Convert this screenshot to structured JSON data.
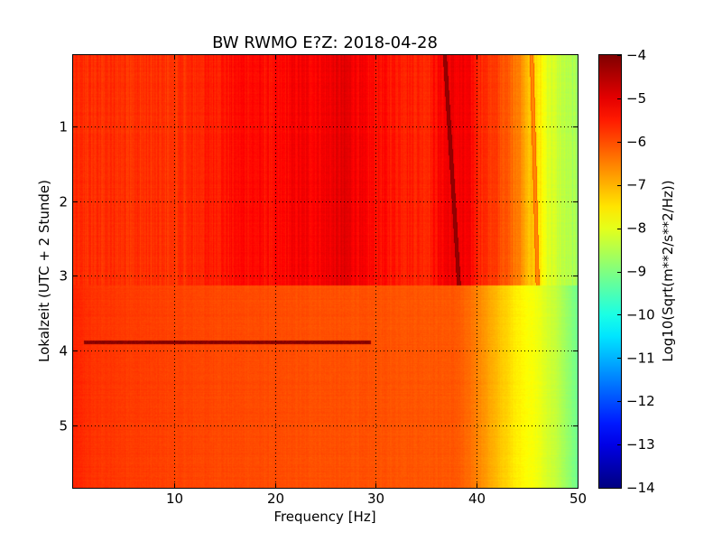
{
  "chart_data": {
    "type": "heatmap",
    "title": "BW RWMO E?Z: 2018-04-28",
    "xlabel": "Frequency [Hz]",
    "ylabel": "Lokalzeit (UTC + 2 Stunde)",
    "xlim": [
      0,
      50
    ],
    "ylim": [
      5.83,
      0.05
    ],
    "y_inverted": true,
    "xticks": [
      10,
      20,
      30,
      40,
      50
    ],
    "xtick_labels": [
      "10",
      "20",
      "30",
      "40",
      "50"
    ],
    "yticks": [
      1,
      2,
      3,
      4,
      5
    ],
    "ytick_labels": [
      "1",
      "2",
      "3",
      "4",
      "5"
    ],
    "grid": true,
    "colormap": "jet",
    "colorbar": {
      "label": "Log10(Sqrt(m**2/s**2/Hz))",
      "min": -14,
      "max": -4,
      "ticks": [
        -4,
        -5,
        -6,
        -7,
        -8,
        -9,
        -10,
        -11,
        -12,
        -13,
        -14
      ],
      "tick_labels": [
        "−4",
        "−5",
        "−6",
        "−7",
        "−8",
        "−9",
        "−10",
        "−11",
        "−12",
        "−13",
        "−14"
      ]
    },
    "regime_change_hour": 3.12,
    "upper_block": {
      "hours": [
        0.05,
        3.12
      ],
      "frequency_profile": [
        {
          "f": 0,
          "v": -5.7
        },
        {
          "f": 5,
          "v": -5.7
        },
        {
          "f": 10,
          "v": -5.75
        },
        {
          "f": 14,
          "v": -5.5
        },
        {
          "f": 17,
          "v": -5.3
        },
        {
          "f": 20,
          "v": -5.4
        },
        {
          "f": 22,
          "v": -5.2
        },
        {
          "f": 24,
          "v": -5.2
        },
        {
          "f": 27,
          "v": -5.0
        },
        {
          "f": 29,
          "v": -5.3
        },
        {
          "f": 31,
          "v": -5.4
        },
        {
          "f": 33,
          "v": -5.5
        },
        {
          "f": 35,
          "v": -5.6
        },
        {
          "f": 37,
          "v": -5.1
        },
        {
          "f": 39,
          "v": -5.2
        },
        {
          "f": 40,
          "v": -5.5
        },
        {
          "f": 42,
          "v": -5.9
        },
        {
          "f": 44,
          "v": -6.4
        },
        {
          "f": 45,
          "v": -7.0
        },
        {
          "f": 46,
          "v": -7.5
        },
        {
          "f": 47,
          "v": -8.0
        },
        {
          "f": 48,
          "v": -8.3
        },
        {
          "f": 49,
          "v": -8.5
        },
        {
          "f": 50,
          "v": -8.7
        }
      ]
    },
    "lower_block": {
      "hours": [
        3.12,
        5.83
      ],
      "frequency_profile": [
        {
          "f": 0,
          "v": -5.6
        },
        {
          "f": 2,
          "v": -5.75
        },
        {
          "f": 10,
          "v": -5.9
        },
        {
          "f": 20,
          "v": -6.0
        },
        {
          "f": 30,
          "v": -6.05
        },
        {
          "f": 38,
          "v": -6.1
        },
        {
          "f": 40,
          "v": -6.5
        },
        {
          "f": 42,
          "v": -7.1
        },
        {
          "f": 44,
          "v": -7.6
        },
        {
          "f": 46,
          "v": -7.9
        },
        {
          "f": 48,
          "v": -8.4
        },
        {
          "f": 50,
          "v": -9.2
        }
      ]
    },
    "line_features": [
      {
        "kind": "drifting_line",
        "f_start": 36.8,
        "h_start": 0.05,
        "f_end": 38.2,
        "h_end": 3.12,
        "v": -4.2
      },
      {
        "kind": "drifting_line",
        "f_start": 45.4,
        "h_start": 0.05,
        "f_end": 46.0,
        "h_end": 3.12,
        "v": -6.6
      },
      {
        "kind": "horizontal_band",
        "hour": 3.88,
        "f_start": 1.0,
        "f_end": 29.5,
        "v": -4.3
      }
    ]
  }
}
